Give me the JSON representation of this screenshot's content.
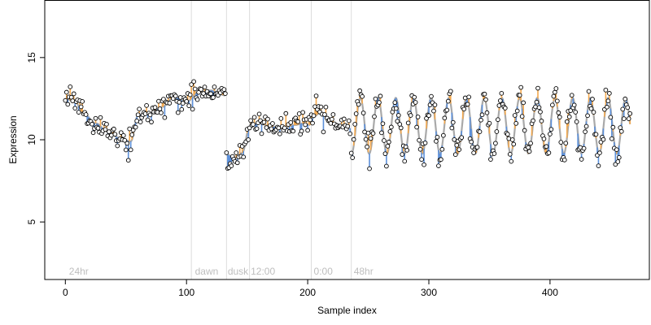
{
  "chart_data": {
    "type": "scatter",
    "xlabel": "Sample index",
    "ylabel": "Expression",
    "xlim": [
      -17,
      482
    ],
    "ylim": [
      1.5,
      18.5
    ],
    "xticks": [
      0,
      100,
      200,
      300,
      400
    ],
    "yticks": [
      5,
      10,
      15
    ],
    "grid": false,
    "colors": {
      "fit_line": "#a9a9a9",
      "up_residual": "#f4a94e",
      "down_residual": "#5b8fd9",
      "point_fill": "#ffffff",
      "point_stroke": "#000000",
      "divider": "#dcdcdc",
      "phase_label": "#bebebe"
    },
    "phase_boundaries": [
      0,
      104,
      133,
      152,
      203,
      236,
      470
    ],
    "phase_labels": [
      {
        "text": "24hr",
        "x": 3
      },
      {
        "text": "dawn",
        "x": 107
      },
      {
        "text": "dusk",
        "x": 134
      },
      {
        "text": "12:00",
        "x": 153
      },
      {
        "text": "0:00",
        "x": 205
      },
      {
        "text": "48hr",
        "x": 238
      }
    ],
    "segments": [
      {
        "x_start": 0,
        "x_end": 132,
        "knots": [
          [
            0,
            12.5
          ],
          [
            8,
            12.3
          ],
          [
            15,
            11.6
          ],
          [
            25,
            11.0
          ],
          [
            35,
            10.5
          ],
          [
            45,
            10.1
          ],
          [
            54,
            9.9
          ],
          [
            60,
            11.5
          ],
          [
            70,
            11.6
          ],
          [
            80,
            12.0
          ],
          [
            90,
            12.6
          ],
          [
            100,
            12.3
          ],
          [
            110,
            12.9
          ],
          [
            120,
            13.0
          ],
          [
            132,
            12.7
          ]
        ]
      },
      {
        "x_start": 133,
        "x_end": 202,
        "knots": [
          [
            133,
            9.1
          ],
          [
            140,
            8.9
          ],
          [
            146,
            9.2
          ],
          [
            152,
            10.8
          ],
          [
            160,
            11.0
          ],
          [
            170,
            10.8
          ],
          [
            180,
            10.7
          ],
          [
            190,
            10.9
          ],
          [
            196,
            11.0
          ],
          [
            202,
            10.9
          ]
        ]
      },
      {
        "x_start": 203,
        "x_end": 235,
        "knots": [
          [
            203,
            11.3
          ],
          [
            210,
            11.6
          ],
          [
            216,
            11.4
          ],
          [
            222,
            11.0
          ],
          [
            229,
            10.9
          ],
          [
            235,
            10.7
          ]
        ]
      }
    ],
    "oscillation": {
      "x_start": 236,
      "x_end": 466,
      "mean": 10.85,
      "amplitude": 1.7,
      "period": 14.6,
      "phase": 3.6
    },
    "noise_sd": 0.45,
    "random_seed": 7
  }
}
